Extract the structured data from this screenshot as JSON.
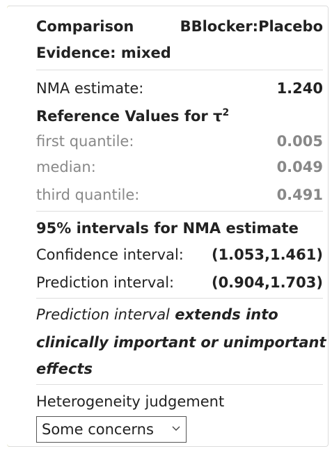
{
  "comparison": {
    "label": "Comparison",
    "value": "BBlocker:Placebo"
  },
  "evidence": "Evidence: mixed",
  "nma_estimate": {
    "label": "NMA estimate:",
    "value": "1.240"
  },
  "reference": {
    "title": "Reference Values for τ",
    "superscript": "2",
    "rows": [
      {
        "label": "first quantile:",
        "value": "0.005"
      },
      {
        "label": "median:",
        "value": "0.049"
      },
      {
        "label": "third quantile:",
        "value": "0.491"
      }
    ]
  },
  "intervals": {
    "title": "95% intervals for NMA estimate",
    "rows": [
      {
        "label": "Confidence interval:",
        "value": "(1.053,1.461)"
      },
      {
        "label": "Prediction interval:",
        "value": "(0.904,1.703)"
      }
    ]
  },
  "note": {
    "italic": "Prediction interval",
    "bold": " extends into",
    "line2": "clinically important or unimportant",
    "line3": "effects"
  },
  "heterogeneity": {
    "label": "Heterogeneity judgement",
    "selected": "Some concerns"
  }
}
